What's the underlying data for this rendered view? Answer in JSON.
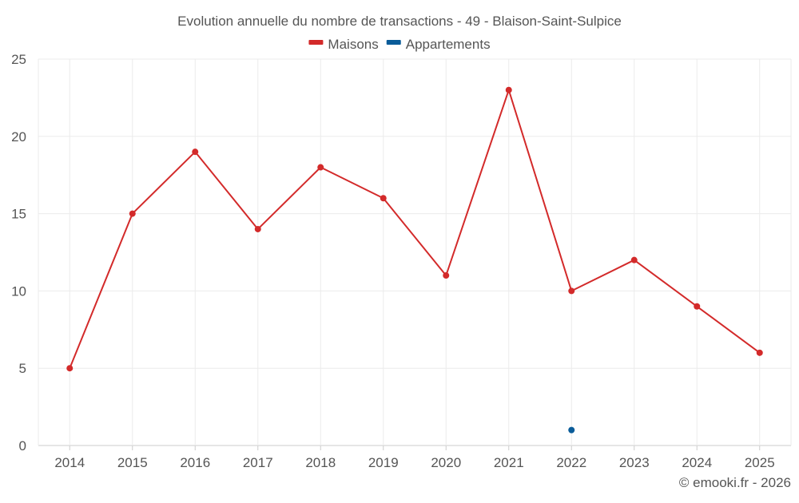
{
  "chart_data": {
    "type": "line",
    "title": "Evolution annuelle du nombre de transactions - 49 - Blaison-Saint-Sulpice",
    "categories": [
      "2014",
      "2015",
      "2016",
      "2017",
      "2018",
      "2019",
      "2020",
      "2021",
      "2022",
      "2023",
      "2024",
      "2025"
    ],
    "series": [
      {
        "name": "Maisons",
        "color": "#d32a2a",
        "values": [
          5,
          15,
          19,
          14,
          18,
          16,
          11,
          23,
          10,
          12,
          9,
          6
        ]
      },
      {
        "name": "Appartements",
        "color": "#0a5c99",
        "values": [
          null,
          null,
          null,
          null,
          null,
          null,
          null,
          null,
          1,
          null,
          null,
          null
        ]
      }
    ],
    "ylim": [
      0,
      25
    ],
    "yticks": [
      0,
      5,
      10,
      15,
      20,
      25
    ],
    "grid": true,
    "legend": "top-center",
    "xlabel": "",
    "ylabel": ""
  },
  "credit": "© emooki.fr - 2026"
}
